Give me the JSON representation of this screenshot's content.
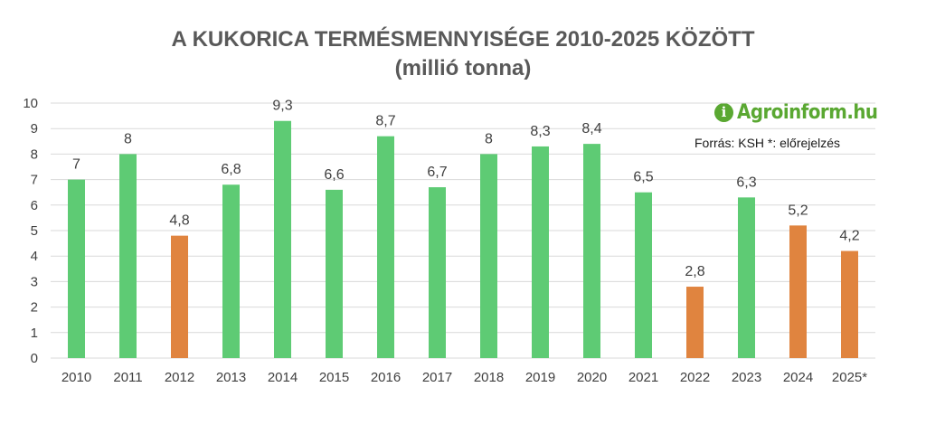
{
  "title_line1": "A KUKORICA TERMÉSMENNYISÉGE 2010-2025 KÖZÖTT",
  "title_line2": "(millió tonna)",
  "brand": {
    "text": "Agroinform.hu",
    "color": "#5aa832"
  },
  "source_note": "Forrás: KSH *: előrejelzés",
  "colors": {
    "green": "#5ecb74",
    "orange": "#e0843f",
    "grid": "#d9d9d9",
    "text": "#404040"
  },
  "chart_data": {
    "type": "bar",
    "categories": [
      "2010",
      "2011",
      "2012",
      "2013",
      "2014",
      "2015",
      "2016",
      "2017",
      "2018",
      "2019",
      "2020",
      "2021",
      "2022",
      "2023",
      "2024",
      "2025*"
    ],
    "values": [
      7,
      8,
      4.8,
      6.8,
      9.3,
      6.6,
      8.7,
      6.7,
      8,
      8.3,
      8.4,
      6.5,
      2.8,
      6.3,
      5.2,
      4.2
    ],
    "data_labels": [
      "7",
      "8",
      "4,8",
      "6,8",
      "9,3",
      "6,6",
      "8,7",
      "6,7",
      "8",
      "8,3",
      "8,4",
      "6,5",
      "2,8",
      "6,3",
      "5,2",
      "4,2"
    ],
    "bar_colors": [
      "green",
      "green",
      "orange",
      "green",
      "green",
      "green",
      "green",
      "green",
      "green",
      "green",
      "green",
      "green",
      "orange",
      "green",
      "orange",
      "orange"
    ],
    "yticks": [
      "0",
      "1",
      "2",
      "3",
      "4",
      "5",
      "6",
      "7",
      "8",
      "9",
      "10"
    ],
    "ylim": [
      0,
      10
    ],
    "grid": true,
    "legend": "none"
  }
}
